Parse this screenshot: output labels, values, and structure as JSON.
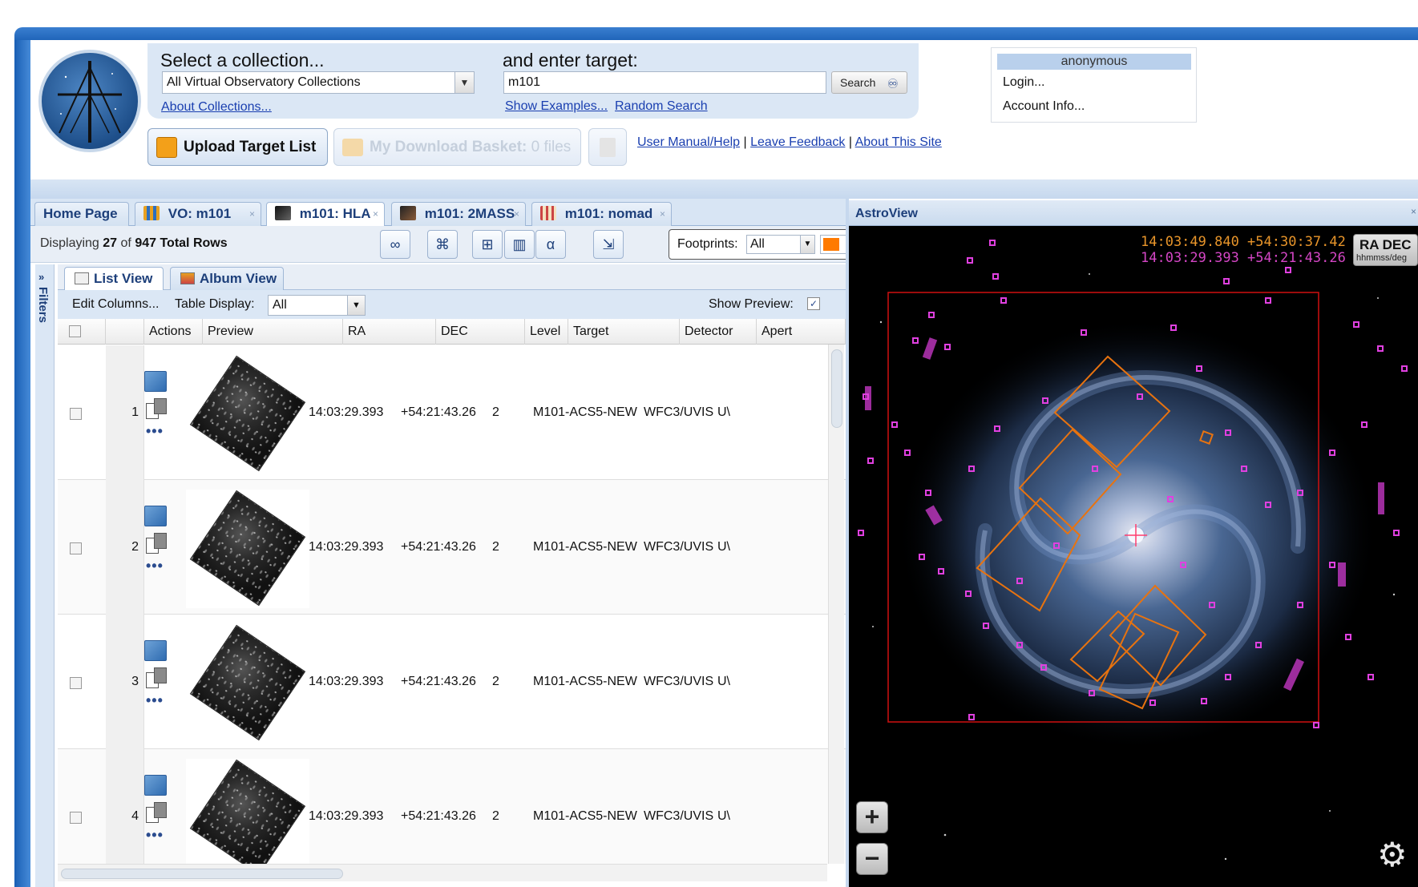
{
  "header": {
    "collection_label": "Select a collection...",
    "collection_value": "All Virtual Observatory Collections",
    "about_collections": "About Collections...",
    "target_label": "and enter target:",
    "target_value": "m101",
    "search_label": "Search",
    "show_examples": "Show Examples...",
    "random_search": "Random Search",
    "upload_label": "Upload Target List",
    "basket_label": "My Download Basket:",
    "basket_count": "0 files",
    "links": {
      "manual": "User Manual/Help",
      "feedback": "Leave Feedback",
      "about": "About This Site",
      "sep": "|"
    }
  },
  "user_menu": {
    "username": "anonymous",
    "login": "Login...",
    "account": "Account Info..."
  },
  "tabs": [
    {
      "label": "Home Page"
    },
    {
      "label": "VO: m101"
    },
    {
      "label": "m101: HLA"
    },
    {
      "label": "m101: 2MASS"
    },
    {
      "label": "m101: nomad"
    }
  ],
  "results": {
    "displaying_prefix": "Displaying",
    "shown": "27",
    "of": "of",
    "total": "947",
    "total_suffix": "Total Rows",
    "footprints_label": "Footprints:",
    "footprints_value": "All",
    "footprint_color": "#ff7a00"
  },
  "filters_label": "Filters",
  "filters_toggle": "»",
  "views": {
    "list": "List View",
    "album": "Album View"
  },
  "edit_row": {
    "edit_columns": "Edit Columns...",
    "table_display_label": "Table Display:",
    "table_display_value": "All",
    "show_preview": "Show Preview:",
    "show_preview_mark": "✓"
  },
  "columns": [
    "Actions",
    "Preview",
    "RA",
    "DEC",
    "Level",
    "Target",
    "Detector",
    "Apert"
  ],
  "rows": [
    {
      "num": "1",
      "ra": "14:03:29.393",
      "dec": "+54:21:43.26",
      "level": "2",
      "target": "M101-ACS5-NEW",
      "detector": "WFC3/UVIS",
      "aperture": "U\\"
    },
    {
      "num": "2",
      "ra": "14:03:29.393",
      "dec": "+54:21:43.26",
      "level": "2",
      "target": "M101-ACS5-NEW",
      "detector": "WFC3/UVIS",
      "aperture": "U\\"
    },
    {
      "num": "3",
      "ra": "14:03:29.393",
      "dec": "+54:21:43.26",
      "level": "2",
      "target": "M101-ACS5-NEW",
      "detector": "WFC3/UVIS",
      "aperture": "U\\"
    },
    {
      "num": "4",
      "ra": "14:03:29.393",
      "dec": "+54:21:43.26",
      "level": "2",
      "target": "M101-ACS5-NEW",
      "detector": "WFC3/UVIS",
      "aperture": "U\\"
    }
  ],
  "row_more": "•••",
  "astroview": {
    "title": "AstroView",
    "close": "×",
    "coord_cursor": "14:03:49.840 +54:30:37.42",
    "coord_center": "14:03:29.393 +54:21:43.26",
    "radec_label": "RA DEC",
    "radec_format": "hhmmss/deg",
    "zoom_in": "+",
    "zoom_out": "−",
    "settings_glyph": "⚙"
  },
  "colors": {
    "accent": "#1a5fb4",
    "link": "#1a3fb0",
    "footprint_orange": "#e8730f",
    "catalog_magenta": "#e040e0",
    "bounds_red": "#d01010"
  }
}
